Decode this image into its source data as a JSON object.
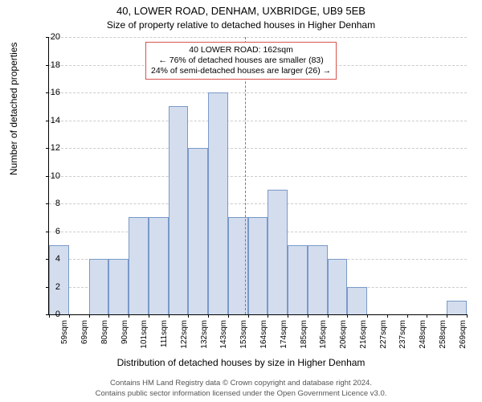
{
  "title_main": "40, LOWER ROAD, DENHAM, UXBRIDGE, UB9 5EB",
  "title_sub": "Size of property relative to detached houses in Higher Denham",
  "chart": {
    "type": "histogram",
    "ylabel": "Number of detached properties",
    "xlabel": "Distribution of detached houses by size in Higher Denham",
    "ylim": [
      0,
      20
    ],
    "ytick_step": 2,
    "bar_fill": "#d3ddee",
    "bar_stroke": "#7a99c8",
    "grid_color": "#cccccc",
    "background_color": "#ffffff",
    "ref_line": {
      "color": "#d9534f",
      "x_label": "162sqm"
    },
    "callout": {
      "line1": "40 LOWER ROAD: 162sqm",
      "line2": "← 76% of detached houses are smaller (83)",
      "line3": "24% of semi-detached houses are larger (26) →",
      "border_color": "#d9534f"
    },
    "x_labels": [
      "59sqm",
      "69sqm",
      "80sqm",
      "90sqm",
      "101sqm",
      "111sqm",
      "122sqm",
      "132sqm",
      "143sqm",
      "153sqm",
      "164sqm",
      "174sqm",
      "185sqm",
      "195sqm",
      "206sqm",
      "216sqm",
      "227sqm",
      "237sqm",
      "248sqm",
      "258sqm",
      "269sqm"
    ],
    "bin_values": [
      5,
      0,
      4,
      4,
      7,
      7,
      15,
      12,
      16,
      7,
      7,
      9,
      5,
      5,
      4,
      2,
      0,
      0,
      0,
      0,
      1
    ],
    "label_fontsize": 12,
    "tick_fontsize": 10,
    "title_fontsize": 13
  },
  "footer": {
    "line1": "Contains HM Land Registry data © Crown copyright and database right 2024.",
    "line2": "Contains public sector information licensed under the Open Government Licence v3.0."
  }
}
